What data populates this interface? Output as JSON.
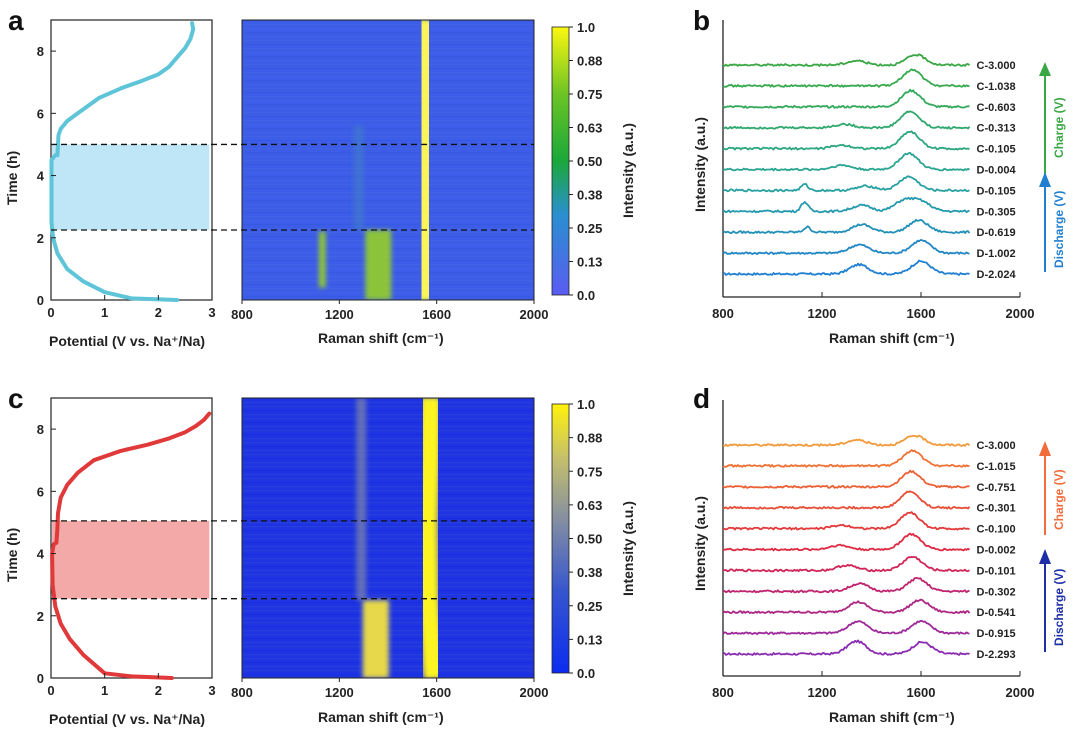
{
  "panels": {
    "a": "a",
    "b": "b",
    "c": "c",
    "d": "d"
  },
  "labels": {
    "time_axis": "Time (h)",
    "potential_axis": "Potential (V vs. Na⁺/Na)",
    "raman_axis": "Raman shift (cm⁻¹)",
    "intensity_cb": "Intensity (a.u.)",
    "intensity_axis": "Intensity (a.u.)",
    "charge": "Charge (V)",
    "discharge": "Discharge (V)"
  },
  "colors": {
    "top_curve": "#5ec4d8",
    "top_shade": "#bfe6f6",
    "bottom_curve": "#e0393a",
    "bottom_shade": "#f4a9a9",
    "charge_top": "#3aa745",
    "discharge_top": "#1f7fd0",
    "charge_bottom": "#f26b3a",
    "discharge_bottom": "#1d2fa8"
  },
  "chart_data": [
    {
      "id": "a-left",
      "type": "line",
      "title": "",
      "xlabel": "Potential (V vs. Na⁺/Na)",
      "ylabel": "Time (h)",
      "xlim": [
        0,
        3
      ],
      "ylim": [
        0,
        9
      ],
      "xticks": [
        0,
        1,
        2,
        3
      ],
      "yticks": [
        0,
        2,
        4,
        6,
        8
      ],
      "x": [
        2.35,
        1.5,
        1.0,
        0.6,
        0.3,
        0.12,
        0.04,
        0.0,
        -0.02,
        0.0,
        0.08,
        0.12,
        0.13,
        0.14,
        0.18,
        0.3,
        0.5,
        0.9,
        1.3,
        1.7,
        2.0,
        2.2,
        2.35,
        2.5,
        2.6,
        2.65,
        2.63
      ],
      "y": [
        0.0,
        0.05,
        0.25,
        0.6,
        1.0,
        1.5,
        2.0,
        2.5,
        3.5,
        4.5,
        4.65,
        4.65,
        5.0,
        5.3,
        5.5,
        5.75,
        6.0,
        6.5,
        6.8,
        7.05,
        7.25,
        7.5,
        7.8,
        8.1,
        8.4,
        8.7,
        8.9
      ],
      "shaded_band_time": [
        2.25,
        5.0
      ],
      "dashed_lines_time": [
        2.25,
        5.0
      ]
    },
    {
      "id": "a-map",
      "type": "heatmap",
      "xlabel": "Raman shift (cm⁻¹)",
      "xlim": [
        800,
        2000
      ],
      "ylim": [
        0,
        9
      ],
      "xticks": [
        800,
        1200,
        1600,
        2000
      ],
      "colorbar": {
        "label": "Intensity (a.u.)",
        "range": [
          0.0,
          1.0
        ],
        "ticks": [
          "0.0",
          "0.13",
          "0.25",
          "0.38",
          "0.50",
          "0.63",
          "0.75",
          "0.88",
          "1.0"
        ]
      },
      "features": [
        {
          "band": "G",
          "center_path": [
            [
              0,
              1560
            ],
            [
              2.25,
              1545
            ],
            [
              5,
              1545
            ],
            [
              6.5,
              1555
            ],
            [
              9,
              1560
            ]
          ],
          "intensity": 1.0
        },
        {
          "band": "D",
          "center": 1360,
          "time_range": [
            0,
            2.25
          ],
          "intensity": 0.55
        },
        {
          "band": "1130",
          "center": 1130,
          "time_range": [
            0.4,
            2.2
          ],
          "intensity": 0.55
        },
        {
          "band": "1280",
          "center": 1280,
          "time_range": [
            2.25,
            5.6
          ],
          "intensity": 0.3
        }
      ]
    },
    {
      "id": "b",
      "type": "line",
      "xlabel": "Raman shift (cm⁻¹)",
      "ylabel": "Intensity (a.u.)",
      "xlim": [
        800,
        2000
      ],
      "xticks": [
        800,
        1200,
        1600,
        2000
      ],
      "series": [
        {
          "name": "D-2.024",
          "color": "#1f7fd0",
          "peaks": [
            [
              1350,
              0.55
            ],
            [
              1600,
              0.75
            ]
          ]
        },
        {
          "name": "D-1.002",
          "color": "#2187c4",
          "peaks": [
            [
              1350,
              0.5
            ],
            [
              1600,
              0.75
            ]
          ]
        },
        {
          "name": "D-0.619",
          "color": "#2390b8",
          "peaks": [
            [
              1140,
              0.3
            ],
            [
              1360,
              0.45
            ],
            [
              1590,
              0.7
            ]
          ]
        },
        {
          "name": "D-0.305",
          "color": "#2599ad",
          "peaks": [
            [
              1130,
              0.55
            ],
            [
              1360,
              0.35
            ],
            [
              1530,
              0.6
            ],
            [
              1600,
              0.55
            ]
          ]
        },
        {
          "name": "D-0.105",
          "color": "#27a0a2",
          "peaks": [
            [
              1130,
              0.35
            ],
            [
              1380,
              0.25
            ],
            [
              1550,
              0.8
            ]
          ]
        },
        {
          "name": "D-0.004",
          "color": "#29a593",
          "peaks": [
            [
              1280,
              0.25
            ],
            [
              1550,
              0.95
            ]
          ]
        },
        {
          "name": "C-0.105",
          "color": "#2ca780",
          "peaks": [
            [
              1280,
              0.2
            ],
            [
              1555,
              1.0
            ]
          ]
        },
        {
          "name": "C-0.313",
          "color": "#30a86e",
          "peaks": [
            [
              1290,
              0.2
            ],
            [
              1555,
              0.95
            ]
          ]
        },
        {
          "name": "C-0.603",
          "color": "#33a95c",
          "peaks": [
            [
              1560,
              0.95
            ]
          ]
        },
        {
          "name": "C-1.038",
          "color": "#38a94f",
          "peaks": [
            [
              1565,
              0.95
            ]
          ]
        },
        {
          "name": "C-3.000",
          "color": "#3aa745",
          "peaks": [
            [
              1340,
              0.25
            ],
            [
              1580,
              0.6
            ]
          ]
        }
      ]
    },
    {
      "id": "c-left",
      "type": "line",
      "xlabel": "Potential (V vs. Na⁺/Na)",
      "ylabel": "Time (h)",
      "xlim": [
        0,
        3
      ],
      "ylim": [
        0,
        9
      ],
      "xticks": [
        0,
        1,
        2,
        3
      ],
      "yticks": [
        0,
        2,
        4,
        6,
        8
      ],
      "x": [
        2.25,
        1.5,
        1.0,
        0.9,
        0.6,
        0.35,
        0.18,
        0.08,
        0.03,
        0.02,
        0.05,
        0.1,
        0.12,
        0.13,
        0.18,
        0.3,
        0.5,
        0.8,
        1.3,
        1.8,
        2.2,
        2.5,
        2.7,
        2.85,
        2.95
      ],
      "y": [
        0.0,
        0.05,
        0.15,
        0.3,
        0.75,
        1.25,
        1.75,
        2.3,
        3.0,
        4.0,
        4.3,
        4.35,
        4.8,
        5.3,
        5.8,
        6.2,
        6.6,
        7.0,
        7.3,
        7.5,
        7.7,
        7.9,
        8.1,
        8.3,
        8.5
      ],
      "shaded_band_time": [
        2.55,
        5.05
      ],
      "dashed_lines_time": [
        2.55,
        5.05
      ]
    },
    {
      "id": "c-map",
      "type": "heatmap",
      "xlabel": "Raman shift (cm⁻¹)",
      "xlim": [
        800,
        2000
      ],
      "ylim": [
        0,
        9
      ],
      "xticks": [
        800,
        1200,
        1600,
        2000
      ],
      "colorbar": {
        "label": "Intensity (a.u.)",
        "range": [
          0.0,
          1.0
        ],
        "ticks": [
          "0.0",
          "0.13",
          "0.25",
          "0.38",
          "0.50",
          "0.63",
          "0.75",
          "0.88",
          "1.0"
        ]
      },
      "features": [
        {
          "band": "G",
          "center_path": [
            [
              0,
              1590
            ],
            [
              2.55,
              1565
            ],
            [
              5,
              1560
            ],
            [
              7,
              1570
            ],
            [
              9,
              1575
            ]
          ],
          "intensity": 1.0
        },
        {
          "band": "D",
          "center": 1350,
          "time_range": [
            0,
            2.5
          ],
          "intensity": 0.75
        },
        {
          "band": "D-faint",
          "center": 1290,
          "time_range": [
            2.5,
            9
          ],
          "intensity": 0.4
        }
      ]
    },
    {
      "id": "d",
      "type": "line",
      "xlabel": "Raman shift (cm⁻¹)",
      "ylabel": "Intensity (a.u.)",
      "xlim": [
        800,
        2000
      ],
      "xticks": [
        800,
        1200,
        1600,
        2000
      ],
      "series": [
        {
          "name": "D-2.293",
          "color": "#8a2bb0",
          "peaks": [
            [
              1340,
              0.75
            ],
            [
              1605,
              0.7
            ]
          ]
        },
        {
          "name": "D-0.915",
          "color": "#9c289a",
          "peaks": [
            [
              1345,
              0.7
            ],
            [
              1600,
              0.7
            ]
          ]
        },
        {
          "name": "D-0.541",
          "color": "#ad2684",
          "peaks": [
            [
              1345,
              0.6
            ],
            [
              1595,
              0.7
            ]
          ]
        },
        {
          "name": "D-0.302",
          "color": "#bf246e",
          "peaks": [
            [
              1350,
              0.45
            ],
            [
              1585,
              0.75
            ]
          ]
        },
        {
          "name": "D-0.101",
          "color": "#cf2558",
          "peaks": [
            [
              1300,
              0.3
            ],
            [
              1565,
              0.8
            ]
          ]
        },
        {
          "name": "D-0.002",
          "color": "#dd2a42",
          "peaks": [
            [
              1270,
              0.25
            ],
            [
              1560,
              0.9
            ]
          ]
        },
        {
          "name": "C-0.100",
          "color": "#e33a3a",
          "peaks": [
            [
              1280,
              0.2
            ],
            [
              1555,
              0.95
            ]
          ]
        },
        {
          "name": "C-0.301",
          "color": "#e84e37",
          "peaks": [
            [
              1555,
              0.95
            ]
          ]
        },
        {
          "name": "C-0.751",
          "color": "#ec6035",
          "peaks": [
            [
              1560,
              0.9
            ]
          ]
        },
        {
          "name": "C-1.015",
          "color": "#f07134",
          "peaks": [
            [
              1565,
              0.9
            ]
          ]
        },
        {
          "name": "C-3.000",
          "color": "#f29a3a",
          "peaks": [
            [
              1340,
              0.3
            ],
            [
              1575,
              0.55
            ]
          ]
        }
      ]
    }
  ]
}
